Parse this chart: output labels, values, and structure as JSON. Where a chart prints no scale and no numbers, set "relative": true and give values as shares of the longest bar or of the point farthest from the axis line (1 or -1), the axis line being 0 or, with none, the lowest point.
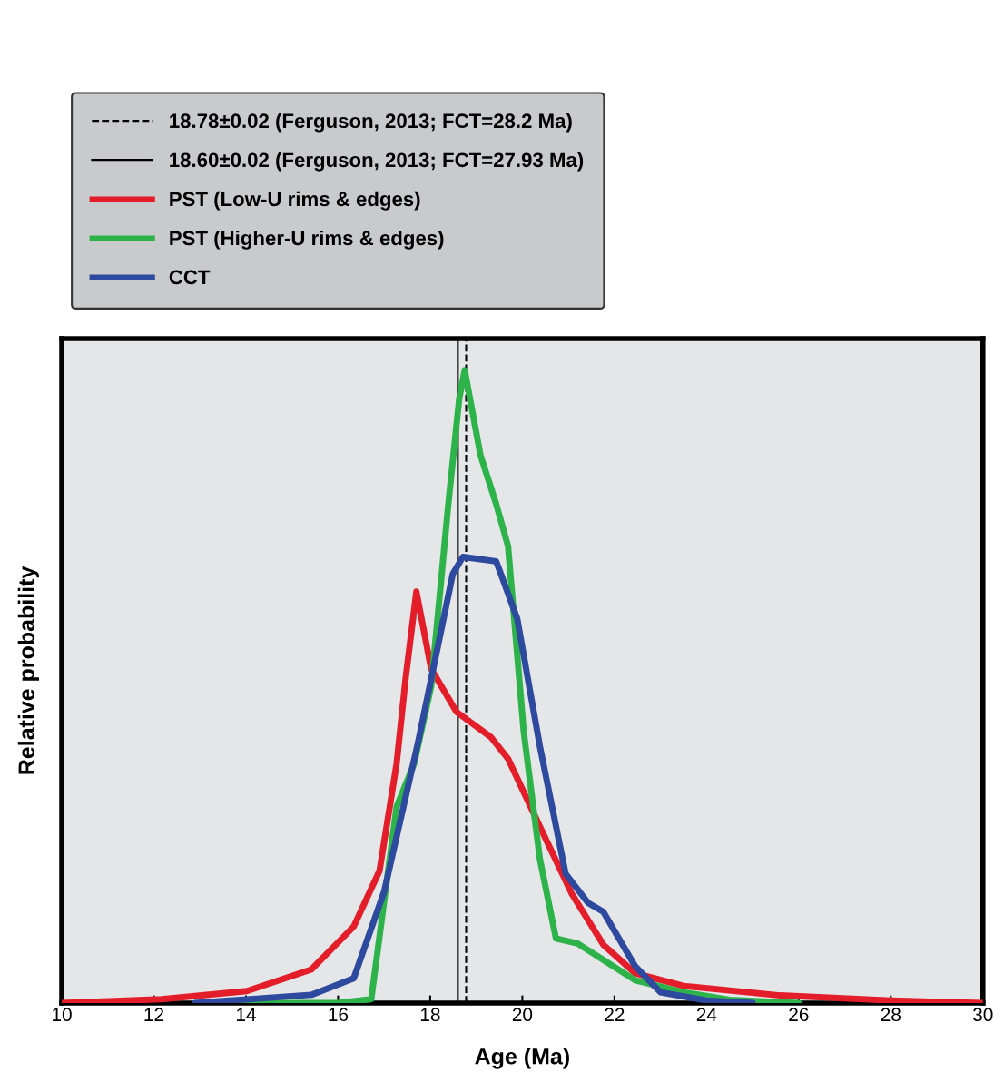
{
  "chart_data": {
    "type": "line",
    "relative": true,
    "xlabel": "Age (Ma)",
    "ylabel": "Relative probability",
    "xlim": [
      10,
      30
    ],
    "xticks": [
      10,
      12,
      14,
      16,
      18,
      20,
      22,
      24,
      26,
      28,
      30
    ],
    "legend": "top left",
    "grid": false,
    "series": [
      {
        "name": "PST (Low-U rims & edges)",
        "color": "#e31e2a",
        "x": [
          10,
          12.17,
          14.02,
          15.42,
          16.34,
          16.9,
          17.27,
          17.47,
          17.7,
          18.02,
          18.57,
          19.32,
          19.69,
          20.38,
          21.07,
          21.76,
          22.45,
          23.5,
          25.6,
          28,
          30
        ],
        "values": [
          0,
          0.006,
          0.019,
          0.053,
          0.121,
          0.209,
          0.378,
          0.515,
          0.65,
          0.528,
          0.46,
          0.42,
          0.386,
          0.279,
          0.173,
          0.092,
          0.047,
          0.027,
          0.012,
          0.004,
          0
        ]
      },
      {
        "name": "PST (Higher-U rims & edges)",
        "color": "#2db34a",
        "x": [
          12.9,
          16.0,
          16.72,
          17.27,
          17.65,
          18.02,
          18.39,
          18.63,
          18.75,
          19.09,
          19.43,
          19.69,
          20.03,
          20.38,
          20.73,
          21.2,
          21.76,
          22.45,
          23.5,
          24.5,
          26
        ],
        "values": [
          0,
          0,
          0.006,
          0.31,
          0.378,
          0.5,
          0.786,
          0.955,
          1.0,
          0.866,
          0.789,
          0.722,
          0.429,
          0.228,
          0.102,
          0.094,
          0.068,
          0.036,
          0.017,
          0.005,
          0
        ]
      },
      {
        "name": "CCT",
        "color": "#2e4a9e",
        "x": [
          12.9,
          15.42,
          16.34,
          17.0,
          17.74,
          18.49,
          18.71,
          19.43,
          19.56,
          19.89,
          20.38,
          20.94,
          21.43,
          21.76,
          22.45,
          23.0,
          24.0,
          25.0
        ],
        "values": [
          0,
          0.013,
          0.039,
          0.176,
          0.413,
          0.678,
          0.705,
          0.698,
          0.673,
          0.607,
          0.406,
          0.204,
          0.158,
          0.144,
          0.058,
          0.017,
          0.004,
          0
        ]
      }
    ],
    "ref_lines": [
      {
        "axis": "x",
        "value": 18.78,
        "label": "18.78±0.02 (Ferguson, 2013; FCT=28.2 Ma)",
        "color": "#000000",
        "line_style": "dashed"
      },
      {
        "axis": "x",
        "value": 18.6,
        "label": "18.60±0.02 (Ferguson, 2013; FCT=27.93 Ma)",
        "color": "#000000",
        "line_style": "solid"
      }
    ]
  }
}
